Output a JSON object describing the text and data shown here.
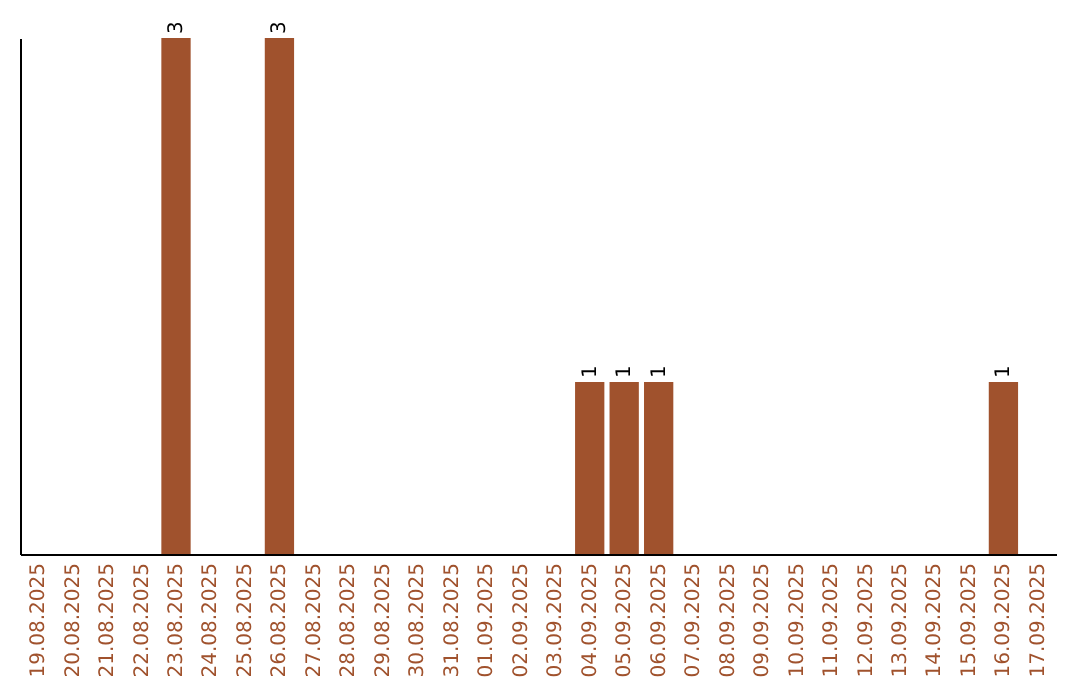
{
  "chart_data": {
    "type": "bar",
    "categories": [
      "19.08.2025",
      "20.08.2025",
      "21.08.2025",
      "22.08.2025",
      "23.08.2025",
      "24.08.2025",
      "25.08.2025",
      "26.08.2025",
      "27.08.2025",
      "28.08.2025",
      "29.08.2025",
      "30.08.2025",
      "31.08.2025",
      "01.09.2025",
      "02.09.2025",
      "03.09.2025",
      "04.09.2025",
      "05.09.2025",
      "06.09.2025",
      "07.09.2025",
      "08.09.2025",
      "09.09.2025",
      "10.09.2025",
      "11.09.2025",
      "12.09.2025",
      "13.09.2025",
      "14.09.2025",
      "15.09.2025",
      "16.09.2025",
      "17.09.2025"
    ],
    "values": [
      0,
      0,
      0,
      0,
      3,
      0,
      0,
      3,
      0,
      0,
      0,
      0,
      0,
      0,
      0,
      0,
      1,
      1,
      1,
      0,
      0,
      0,
      0,
      0,
      0,
      0,
      0,
      0,
      1,
      0
    ],
    "value_labels": [
      null,
      null,
      null,
      null,
      "3",
      null,
      null,
      "3",
      null,
      null,
      null,
      null,
      null,
      null,
      null,
      null,
      "1",
      "1",
      "1",
      null,
      null,
      null,
      null,
      null,
      null,
      null,
      null,
      null,
      "1",
      null
    ],
    "color": "#a0522d",
    "tick_labels": "x",
    "grid": false
  }
}
